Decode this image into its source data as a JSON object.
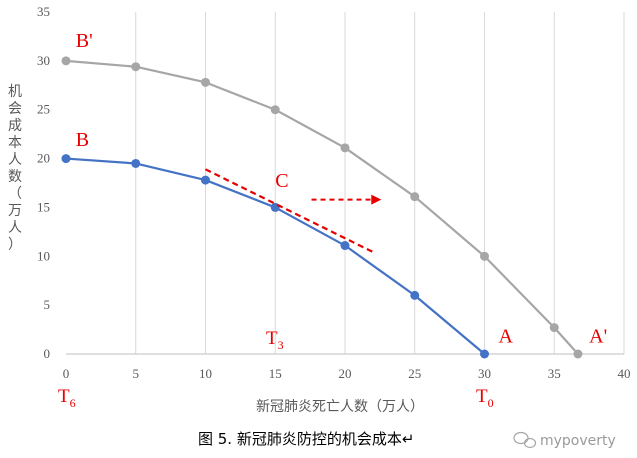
{
  "chart_data": {
    "type": "line",
    "xlabel": "新冠肺炎死亡人数（万人）",
    "ylabel": "机会成本人数（万人）",
    "xlim": [
      0,
      40
    ],
    "ylim": [
      0,
      35
    ],
    "xticks": [
      0,
      5,
      10,
      15,
      20,
      25,
      30,
      35,
      40
    ],
    "yticks": [
      0,
      5,
      10,
      15,
      20,
      25,
      30,
      35
    ],
    "grid": "vertical",
    "series": [
      {
        "color": "#a6a6a6",
        "points": [
          [
            0,
            30
          ],
          [
            5,
            29.4
          ],
          [
            10,
            27.8
          ],
          [
            15,
            25
          ],
          [
            20,
            21.1
          ],
          [
            25,
            16.1
          ],
          [
            30,
            10
          ],
          [
            35,
            2.7
          ],
          [
            36.7,
            0
          ]
        ]
      },
      {
        "color": "#4472c4",
        "points": [
          [
            0,
            20
          ],
          [
            5,
            19.5
          ],
          [
            10,
            17.8
          ],
          [
            15,
            15
          ],
          [
            20,
            11.1
          ],
          [
            25,
            6
          ],
          [
            30,
            0
          ]
        ]
      }
    ],
    "tangent_line": {
      "color": "#e60000",
      "from": [
        10,
        18.9
      ],
      "to": [
        22.2,
        10.3
      ]
    },
    "shift_arrow": {
      "color": "#e60000",
      "from": [
        17.6,
        15.8
      ],
      "to": [
        22.6,
        15.8
      ]
    },
    "annotations": [
      {
        "id": "bp",
        "text": "B'",
        "x": 0.7,
        "y": 31.4
      },
      {
        "id": "b",
        "text": "B",
        "x": 0.7,
        "y": 21.3
      },
      {
        "id": "c",
        "text": "C",
        "x": 15,
        "y": 17.1
      },
      {
        "id": "a",
        "text": "A",
        "x": 31,
        "y": 1.2
      },
      {
        "id": "ap",
        "text": "A'",
        "x": 37.5,
        "y": 1.2
      }
    ],
    "subscript_labels": [
      {
        "id": "t3",
        "base": "T",
        "sub": "3"
      },
      {
        "id": "t6",
        "base": "T",
        "sub": "6"
      },
      {
        "id": "t0",
        "base": "T",
        "sub": "0"
      }
    ]
  },
  "caption": "图 5. 新冠肺炎防控的机会成本↵",
  "watermark": "mypoverty"
}
